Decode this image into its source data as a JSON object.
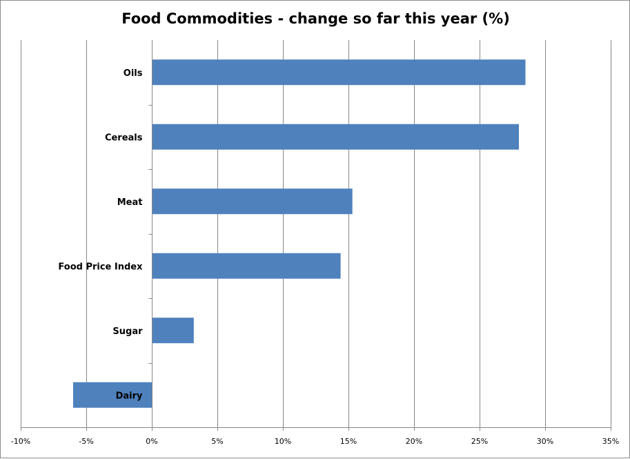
{
  "chart_data": {
    "type": "bar",
    "orientation": "horizontal",
    "title": "Food Commodities - change so far this year (%)",
    "xlabel": "",
    "ylabel": "",
    "categories": [
      "Oils",
      "Cereals",
      "Meat",
      "Food Price Index",
      "Sugar",
      "Dairy"
    ],
    "values": [
      28.5,
      28.0,
      15.3,
      14.4,
      3.2,
      -6.0
    ],
    "xlim": [
      -10,
      35
    ],
    "xticks": [
      -10,
      -5,
      0,
      5,
      10,
      15,
      20,
      25,
      30,
      35
    ],
    "xtick_labels": [
      "-10%",
      "-5%",
      "0%",
      "5%",
      "10%",
      "15%",
      "20%",
      "25%",
      "30%",
      "35%"
    ],
    "grid": "vertical major gridlines",
    "legend": "none",
    "bar_color": "#4f81bd",
    "grid_color": "#868686"
  }
}
